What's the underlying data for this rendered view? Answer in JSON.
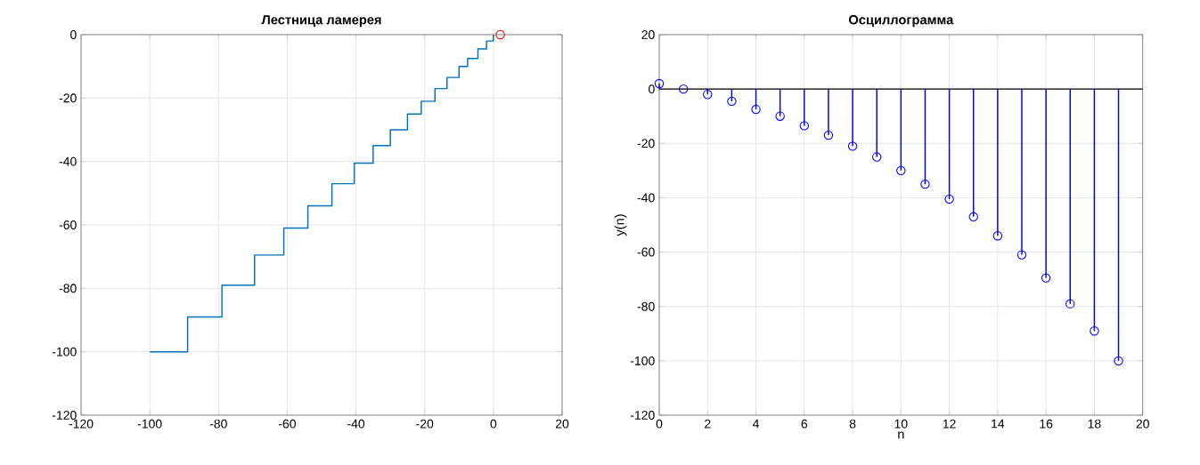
{
  "chart_data": [
    {
      "title": "Лестница ламерея",
      "xlim": [
        -120,
        20
      ],
      "ylim": [
        -120,
        0
      ],
      "xticks": [
        -120,
        -100,
        -80,
        -60,
        -40,
        -20,
        0,
        20
      ],
      "yticks": [
        -120,
        -100,
        -80,
        -60,
        -40,
        -20,
        0
      ],
      "grid": true,
      "type": "step",
      "series": [
        {
          "type": "step",
          "color": "#0072bd",
          "marker": "none",
          "x": [
            -100,
            -89,
            -79,
            -69.5,
            -61,
            -54,
            -47,
            -40.5,
            -35,
            -30,
            -25,
            -21,
            -17,
            -13.5,
            -10,
            -7.5,
            -4.5,
            -2,
            0
          ],
          "values": [
            -100,
            -89,
            -79,
            -69.5,
            -61,
            -54,
            -47,
            -40.5,
            -35,
            -30,
            -25,
            -21,
            -17,
            -13.5,
            -10,
            -7.5,
            -4.5,
            -2,
            0
          ]
        },
        {
          "type": "scatter",
          "color": "#ff0000",
          "marker": "circle",
          "x": [
            2
          ],
          "values": [
            0
          ]
        }
      ]
    },
    {
      "title": "Осциллограмма",
      "xlabel": "n",
      "ylabel": "y(n)",
      "type": "lollipop",
      "color": "#0000ff",
      "marker": "circle",
      "xlim": [
        0,
        20
      ],
      "ylim": [
        -120,
        20
      ],
      "xticks": [
        0,
        2,
        4,
        6,
        8,
        10,
        12,
        14,
        16,
        18,
        20
      ],
      "yticks": [
        -120,
        -100,
        -80,
        -60,
        -40,
        -20,
        0,
        20
      ],
      "grid": true,
      "x": [
        0,
        1,
        2,
        3,
        4,
        5,
        6,
        7,
        8,
        9,
        10,
        11,
        12,
        13,
        14,
        15,
        16,
        17,
        18,
        19
      ],
      "values": [
        2,
        0,
        -2,
        -4.5,
        -7.5,
        -10,
        -13.5,
        -17,
        -21,
        -25,
        -30,
        -35,
        -40.5,
        -47,
        -54,
        -61,
        -69.5,
        -79,
        -89,
        -100
      ],
      "ref_lines": [
        {
          "axis": "y",
          "value": 0,
          "color": "#000000"
        }
      ]
    }
  ]
}
